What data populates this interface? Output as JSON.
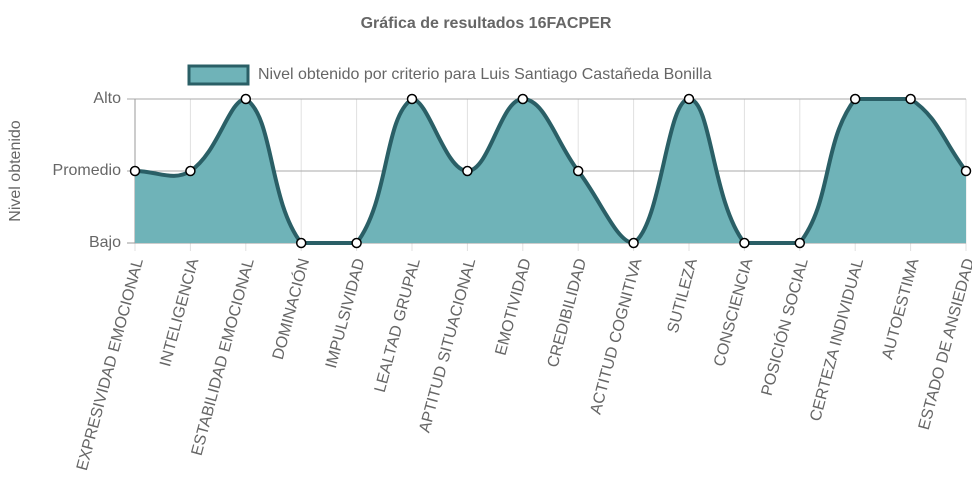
{
  "chart_data": {
    "type": "area",
    "title": "Gráfica de resultados 16FACPER",
    "y_label": "Nivel obtenido",
    "categories": [
      "EXPRESIVIDAD EMOCIONAL",
      "INTELIGENCIA",
      "ESTABILIDAD EMOCIONAL",
      "DOMINACIÓN",
      "IMPULSIVIDAD",
      "LEALTAD GRUPAL",
      "APTITUD SITUACIONAL",
      "EMOTIVIDAD",
      "CREDIBILIDAD",
      "ACTITUD COGNITIVA",
      "SUTILEZA",
      "CONSCIENCIA",
      "POSICIÓN SOCIAL",
      "CERTEZA INDIVIDUAL",
      "AUTOESTIMA",
      "ESTADO DE ANSIEDAD"
    ],
    "series": [
      {
        "name": "Nivel obtenido por criterio para Luis Santiago Castañeda Bonilla",
        "color": "#2a5f66",
        "fill": "#6fb3b8",
        "values": [
          2,
          2,
          3,
          1,
          1,
          3,
          2,
          3,
          2,
          1,
          3,
          1,
          1,
          3,
          3,
          2
        ]
      }
    ],
    "ylim": [
      1,
      3
    ],
    "yticks": [
      {
        "value": 1,
        "label": "Bajo"
      },
      {
        "value": 2,
        "label": "Promedio"
      },
      {
        "value": 3,
        "label": "Alto"
      }
    ],
    "grid": true
  }
}
